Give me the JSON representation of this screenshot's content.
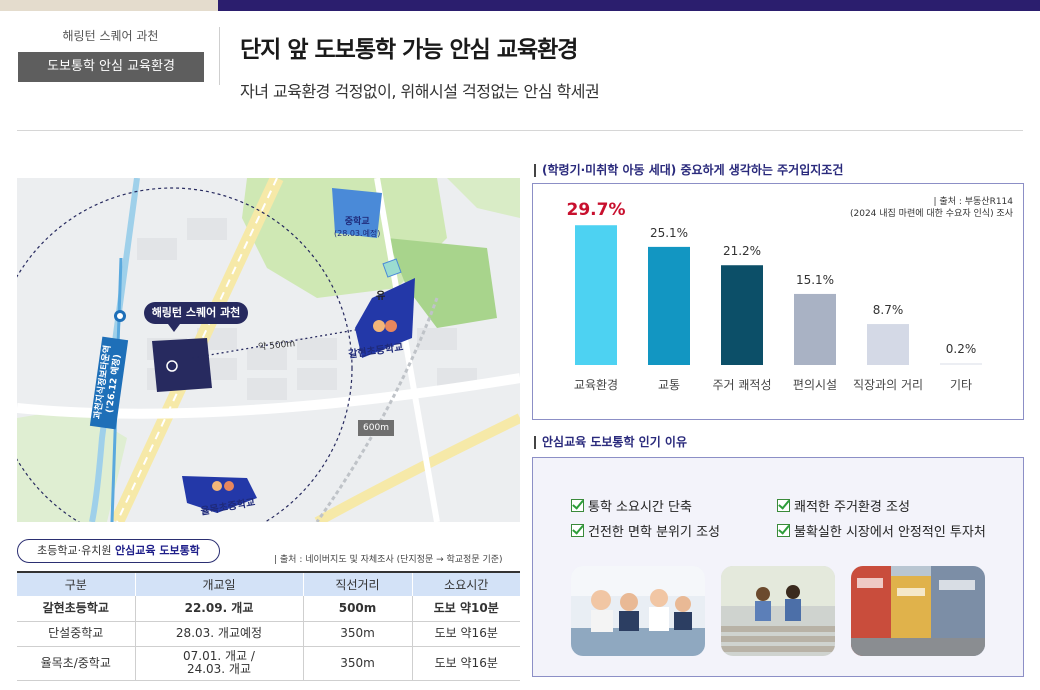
{
  "header": {
    "brand_name": "해링턴 스퀘어 과천",
    "badge": "도보통학 안심 교육환경",
    "title": "단지 앞 도보통학 가능 안심 교육환경",
    "subtitle": "자녀 교육환경 걱정없이, 위해시설 걱정없는 안심 학세권"
  },
  "map": {
    "complex_label": "해링턴 스퀘어 과천",
    "distance_elem": "약 500m",
    "distance_600": "600m",
    "middle_school": "중학교",
    "middle_school_note": "(28.03.예정)",
    "kindergarten": "유",
    "elem_school": "갈현초등학교",
    "yulmok_school": "율목초중학교",
    "station": "과천지식정보타운역",
    "station_note": "('26.12 예정)"
  },
  "school_table": {
    "tag_prefix": "초등학교·유치원 ",
    "tag_bold": "안심교육 도보통학",
    "source": "| 출처 : 네이버지도 및 자체조사 (단지정문 → 학교정문 기준)",
    "headers": [
      "구분",
      "개교일",
      "직선거리",
      "소요시간"
    ],
    "rows": [
      [
        "갈현초등학교",
        "22.09. 개교",
        "500m",
        "도보 약10분"
      ],
      [
        "단설중학교",
        "28.03. 개교예정",
        "350m",
        "도보 약16분"
      ],
      [
        "율목초/중학교",
        "07.01. 개교 / 24.03. 개교",
        "350m",
        "도보 약16분"
      ]
    ]
  },
  "chart_section": {
    "heading": "(학령기·미취학 아동 세대) 중요하게 생각하는 주거입지조건",
    "source_line1": "| 출처 : 부동산R114",
    "source_line2": "(2024 내집 마련에 대한 수요자 인식) 조사"
  },
  "chart_data": {
    "type": "bar",
    "categories": [
      "교육환경",
      "교통",
      "주거 쾌적성",
      "편의시설",
      "직장과의 거리",
      "기타"
    ],
    "values": [
      29.7,
      25.1,
      21.2,
      15.1,
      8.7,
      0.2
    ],
    "value_labels": [
      "29.7%",
      "25.1%",
      "21.2%",
      "15.1%",
      "8.7%",
      "0.2%"
    ],
    "ylim": [
      0,
      35
    ],
    "colors": [
      "#4dd2f2",
      "#1296c2",
      "#0c4f68",
      "#a9b2c4",
      "#d4d9e6",
      "#eceef3"
    ],
    "highlight_color": "#c8102e"
  },
  "reasons_section": {
    "heading": "안심교육 도보통학 인기 이유",
    "items": [
      "통학 소요시간 단축",
      "쾌적한 주거환경 조성",
      "건전한 면학 분위기 조성",
      "불확실한 시장에서 안정적인 투자처"
    ]
  }
}
